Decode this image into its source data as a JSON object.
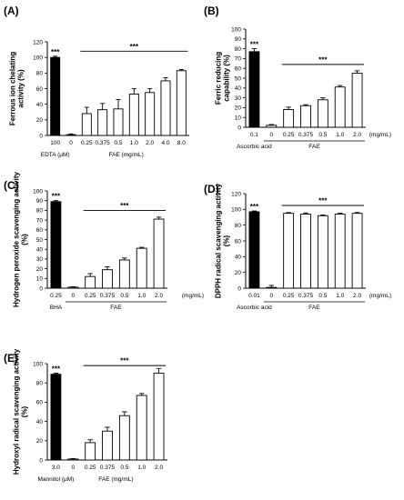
{
  "chart_data": [
    {
      "type": "bar",
      "panel_label": "(A)",
      "ylabel": "Ferrous ion chelating activity (%)",
      "ylim": [
        0,
        120
      ],
      "yticks": [
        "0",
        "20",
        "40",
        "60",
        "80",
        "100",
        "120"
      ],
      "categories": [
        "100",
        "0",
        "0.25",
        "0.375",
        "0.5",
        "1.0",
        "2.0",
        "4.0",
        "8.0"
      ],
      "values": [
        100,
        1,
        28,
        33,
        34,
        53,
        55,
        70,
        83
      ],
      "errors": [
        1.5,
        1,
        8,
        8,
        12,
        7,
        5,
        4,
        1.5
      ],
      "filled": [
        true,
        false,
        false,
        false,
        false,
        false,
        false,
        false,
        false
      ],
      "unit_suffix": "",
      "groups": [
        {
          "label": "EDTA (μM)",
          "from": 0,
          "to": 0,
          "underline": false
        },
        {
          "label": "FAE (mg/mL)",
          "from": 1,
          "to": 8,
          "underline": false
        }
      ],
      "annotations": [
        {
          "text": "***",
          "type": "bar",
          "index": 0
        },
        {
          "text": "***",
          "type": "line",
          "from": 2,
          "to": 8,
          "y": 108
        }
      ]
    },
    {
      "type": "bar",
      "panel_label": "(B)",
      "ylabel": "Ferric reducing capability (%)",
      "ylim": [
        0,
        100
      ],
      "yticks": [
        "0",
        "10",
        "20",
        "30",
        "40",
        "50",
        "60",
        "70",
        "80",
        "90",
        "100"
      ],
      "categories": [
        "0.1",
        "0",
        "0.25",
        "0.375",
        "0.5",
        "1.0",
        "2.0"
      ],
      "values": [
        77,
        2,
        18,
        22,
        28,
        41,
        55
      ],
      "errors": [
        3,
        0.8,
        2.5,
        1,
        2,
        1.5,
        2.5
      ],
      "filled": [
        true,
        false,
        false,
        false,
        false,
        false,
        false
      ],
      "unit_suffix": "(mg/mL)",
      "groups": [
        {
          "label": "Ascorbic acid",
          "from": 0,
          "to": 0,
          "underline": false
        },
        {
          "label": "FAE",
          "from": 1,
          "to": 6,
          "underline": true
        }
      ],
      "annotations": [
        {
          "text": "***",
          "type": "bar",
          "index": 0
        },
        {
          "text": "***",
          "type": "line",
          "from": 2,
          "to": 6,
          "y": 64
        }
      ]
    },
    {
      "type": "bar",
      "panel_label": "(C)",
      "ylabel": "Hydrogen peroxide scavenging activity (%)",
      "ylim": [
        0,
        100
      ],
      "yticks": [
        "0",
        "10",
        "20",
        "30",
        "40",
        "50",
        "60",
        "70",
        "80",
        "90",
        "100"
      ],
      "categories": [
        "0.25",
        "0",
        "0.25",
        "0.375",
        "0.5",
        "1.0",
        "2.0"
      ],
      "values": [
        89,
        1,
        12,
        19,
        29,
        41,
        71
      ],
      "errors": [
        1,
        0.5,
        3,
        3,
        2,
        1,
        2
      ],
      "filled": [
        true,
        false,
        false,
        false,
        false,
        false,
        false
      ],
      "unit_suffix": "(mg/mL)",
      "groups": [
        {
          "label": "BHA",
          "from": 0,
          "to": 0,
          "underline": false
        },
        {
          "label": "FAE",
          "from": 1,
          "to": 6,
          "underline": true
        }
      ],
      "annotations": [
        {
          "text": "***",
          "type": "bar",
          "index": 0
        },
        {
          "text": "***",
          "type": "line",
          "from": 2,
          "to": 6,
          "y": 80
        }
      ]
    },
    {
      "type": "bar",
      "panel_label": "(D)",
      "ylabel": "DPPH radical scavenging activity (%)",
      "ylim": [
        0,
        120
      ],
      "yticks": [
        "0",
        "20",
        "40",
        "60",
        "80",
        "100",
        "120"
      ],
      "categories": [
        "0.01",
        "0",
        "0.25",
        "0.375",
        "0.5",
        "1.0",
        "2.0"
      ],
      "values": [
        97,
        1,
        95,
        94,
        92,
        94,
        95
      ],
      "errors": [
        1,
        2.5,
        1,
        1.5,
        1,
        1,
        1
      ],
      "filled": [
        true,
        false,
        false,
        false,
        false,
        false,
        false
      ],
      "unit_suffix": "(mg/mL)",
      "groups": [
        {
          "label": "Ascorbic acid",
          "from": 0,
          "to": 0,
          "underline": false
        },
        {
          "label": "FAE",
          "from": 1,
          "to": 6,
          "underline": true
        }
      ],
      "annotations": [
        {
          "text": "***",
          "type": "bar",
          "index": 0
        },
        {
          "text": "***",
          "type": "line",
          "from": 2,
          "to": 6,
          "y": 105
        }
      ]
    },
    {
      "type": "bar",
      "panel_label": "(E)",
      "ylabel": "Hydroxyl radical scavenging activity (%)",
      "ylim": [
        0,
        100
      ],
      "yticks": [
        "0",
        "20",
        "40",
        "60",
        "80",
        "100"
      ],
      "categories": [
        "3.0",
        "0",
        "0.25",
        "0.375",
        "0.5",
        "1.0",
        "2.0"
      ],
      "values": [
        89,
        1,
        18,
        30,
        46,
        67,
        90
      ],
      "errors": [
        1,
        0.5,
        3,
        4,
        4,
        2,
        5
      ],
      "filled": [
        true,
        false,
        false,
        false,
        false,
        false,
        false
      ],
      "unit_suffix": "",
      "groups": [
        {
          "label": "Mannitol (μM)",
          "from": 0,
          "to": 0,
          "underline": false
        },
        {
          "label": "FAE (mg/mL)",
          "from": 1,
          "to": 6,
          "underline": false
        }
      ],
      "annotations": [
        {
          "text": "***",
          "type": "bar",
          "index": 0
        },
        {
          "text": "***",
          "type": "line",
          "from": 2,
          "to": 6,
          "y": 98
        }
      ]
    }
  ]
}
